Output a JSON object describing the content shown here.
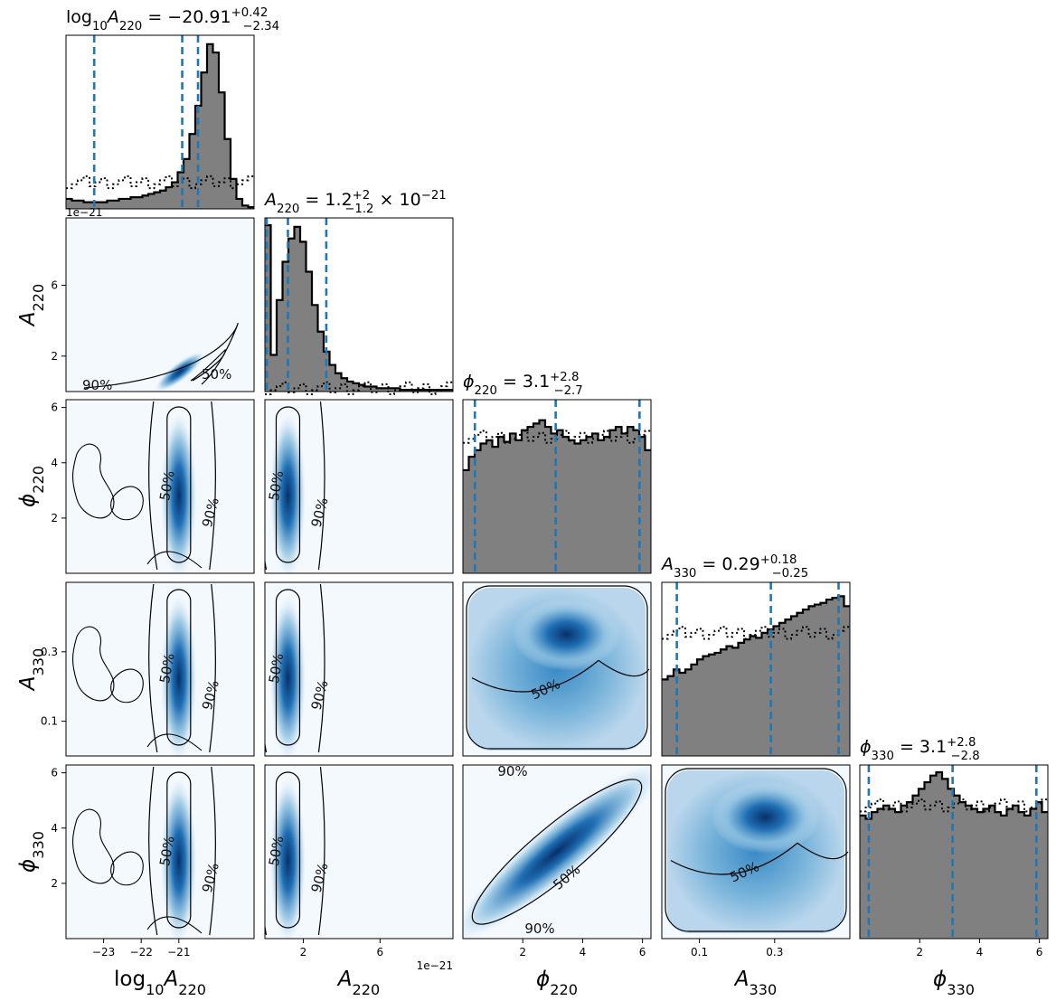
{
  "chart_data": {
    "type": "corner",
    "parameters": [
      {
        "key": "log10A220",
        "label_main": "log",
        "label_sub": "10",
        "label_sym": "A",
        "label_sym_sub": "220",
        "range": [
          -24.0,
          -19.0
        ],
        "ticks": [
          -23,
          -22,
          -21
        ],
        "tick_labels": [
          "−23",
          "−22",
          "−21"
        ],
        "offset_text": "",
        "title_text": "log",
        "title": {
          "prefix": "log",
          "prefix_sub": "10",
          "sym": "A",
          "sym_sub": "220",
          "value": " = −20.91",
          "up": "+0.42",
          "down": "−2.34",
          "suffix": "",
          "suffix_exp": ""
        },
        "median": -20.91,
        "q_low": -23.25,
        "q_high": -20.49,
        "hist_shape": [
          0.06,
          0.05,
          0.05,
          0.04,
          0.04,
          0.04,
          0.04,
          0.05,
          0.05,
          0.06,
          0.06,
          0.07,
          0.07,
          0.08,
          0.09,
          0.1,
          0.11,
          0.13,
          0.16,
          0.22,
          0.3,
          0.45,
          0.62,
          0.82,
          0.99,
          0.94,
          0.7,
          0.42,
          0.18,
          0.06,
          0.02,
          0.01
        ],
        "prior_level": 0.16
      },
      {
        "key": "A220",
        "label_sym": "A",
        "label_sym_sub": "220",
        "range": [
          0.0,
          9.8
        ],
        "ticks": [
          2,
          6
        ],
        "tick_labels": [
          "2",
          "6"
        ],
        "offset_text": "1e−21",
        "title": {
          "prefix": "",
          "prefix_sub": "",
          "sym": "A",
          "sym_sub": "220",
          "value": " = 1.2",
          "up": "+2",
          "down": "−1.2",
          "suffix": " × 10",
          "suffix_exp": "−21"
        },
        "median": 1.2,
        "q_low": 0.0,
        "q_high": 3.2,
        "hist_shape": [
          1.0,
          0.22,
          0.55,
          0.78,
          0.92,
          0.99,
          0.9,
          0.72,
          0.52,
          0.36,
          0.24,
          0.16,
          0.11,
          0.08,
          0.06,
          0.05,
          0.04,
          0.03,
          0.03,
          0.02,
          0.02,
          0.02,
          0.02,
          0.01,
          0.01,
          0.01,
          0.01,
          0.01,
          0.01,
          0.01,
          0.01,
          0.01
        ],
        "prior_level": 0.02
      },
      {
        "key": "phi220",
        "label_sym": "ϕ",
        "label_sym_sub": "220",
        "range": [
          0.0,
          6.283
        ],
        "ticks": [
          2,
          4,
          6
        ],
        "tick_labels": [
          "2",
          "4",
          "6"
        ],
        "offset_text": "",
        "title": {
          "prefix": "",
          "prefix_sub": "",
          "sym": "ϕ",
          "sym_sub": "220",
          "value": " = 3.1",
          "up": "+2.8",
          "down": "−2.7",
          "suffix": "",
          "suffix_exp": ""
        },
        "median": 3.1,
        "q_low": 0.4,
        "q_high": 5.9,
        "hist_shape": [
          0.62,
          0.7,
          0.74,
          0.78,
          0.8,
          0.76,
          0.82,
          0.79,
          0.84,
          0.8,
          0.86,
          0.88,
          0.9,
          0.92,
          0.88,
          0.84,
          0.86,
          0.82,
          0.8,
          0.78,
          0.8,
          0.82,
          0.84,
          0.8,
          0.82,
          0.86,
          0.88,
          0.84,
          0.88,
          0.86,
          0.82,
          0.74
        ],
        "prior_level": 0.82
      },
      {
        "key": "A330",
        "label_sym": "A",
        "label_sym_sub": "330",
        "range": [
          0.0,
          0.5
        ],
        "ticks": [
          0.1,
          0.3
        ],
        "tick_labels": [
          "0.1",
          "0.3"
        ],
        "offset_text": "",
        "title": {
          "prefix": "",
          "prefix_sub": "",
          "sym": "A",
          "sym_sub": "330",
          "value": " = 0.29",
          "up": "+0.18",
          "down": "−0.25",
          "suffix": "",
          "suffix_exp": ""
        },
        "median": 0.29,
        "q_low": 0.04,
        "q_high": 0.47,
        "hist_shape": [
          0.46,
          0.48,
          0.52,
          0.5,
          0.52,
          0.55,
          0.58,
          0.6,
          0.61,
          0.62,
          0.64,
          0.66,
          0.65,
          0.68,
          0.7,
          0.72,
          0.71,
          0.74,
          0.76,
          0.78,
          0.8,
          0.82,
          0.84,
          0.86,
          0.88,
          0.9,
          0.91,
          0.92,
          0.94,
          0.95,
          0.96,
          0.9
        ],
        "prior_level": 0.74
      },
      {
        "key": "phi330",
        "label_sym": "ϕ",
        "label_sym_sub": "330",
        "range": [
          0.0,
          6.283
        ],
        "ticks": [
          2,
          4,
          6
        ],
        "tick_labels": [
          "2",
          "4",
          "6"
        ],
        "offset_text": "",
        "title": {
          "prefix": "",
          "prefix_sub": "",
          "sym": "ϕ",
          "sym_sub": "330",
          "value": " = 3.1",
          "up": "+2.8",
          "down": "−2.8",
          "suffix": "",
          "suffix_exp": ""
        },
        "median": 3.1,
        "q_low": 0.3,
        "q_high": 5.9,
        "hist_shape": [
          0.74,
          0.72,
          0.76,
          0.78,
          0.8,
          0.78,
          0.76,
          0.8,
          0.82,
          0.86,
          0.9,
          0.94,
          0.98,
          1.0,
          0.96,
          0.9,
          0.86,
          0.82,
          0.8,
          0.78,
          0.76,
          0.78,
          0.8,
          0.76,
          0.74,
          0.78,
          0.8,
          0.76,
          0.74,
          0.78,
          0.82,
          0.76
        ],
        "prior_level": 0.8
      }
    ],
    "row_offsets": [
      "",
      "1e−21",
      "",
      "",
      ""
    ],
    "contour_levels": [
      "50%",
      "90%"
    ],
    "colors": {
      "hist_fill": "#808080",
      "quantile": "#1f77b4",
      "density_low": "#f4f9fe",
      "density_high": "#08306b",
      "line": "#000000"
    }
  }
}
